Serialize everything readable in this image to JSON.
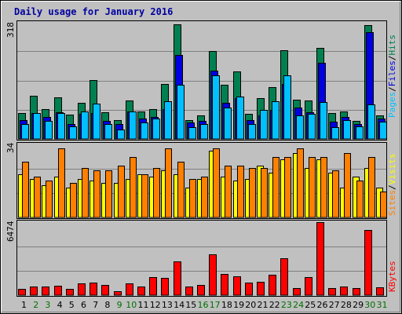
{
  "title": "Daily usage for January 2016",
  "colors": {
    "background": "#c0c0c0",
    "title": "#0000a0",
    "hits": "#008050",
    "files": "#0000e0",
    "pages": "#00c0ff",
    "visits": "#ffff00",
    "sites": "#ff8000",
    "kbytes": "#ff0000",
    "weekend_day_label": "#007000",
    "weekday_day_label": "#000000"
  },
  "chart_data": [
    {
      "type": "bar",
      "panel": "hits-files-pages",
      "ymax_label": "318",
      "ylim": [
        0,
        318
      ],
      "legend": [
        {
          "key": "pages",
          "label": "Pages"
        },
        {
          "key": "files",
          "label": "Files"
        },
        {
          "key": "hits",
          "label": "Hits"
        }
      ],
      "legend_separator": " / ",
      "categories": [
        "1",
        "2",
        "3",
        "4",
        "5",
        "6",
        "7",
        "8",
        "9",
        "10",
        "11",
        "12",
        "13",
        "14",
        "15",
        "16",
        "17",
        "18",
        "19",
        "20",
        "21",
        "22",
        "23",
        "24",
        "25",
        "26",
        "27",
        "28",
        "29",
        "30",
        "31"
      ],
      "series": [
        {
          "key": "hits",
          "values": [
            70,
            118,
            82,
            114,
            66,
            98,
            160,
            72,
            52,
            105,
            74,
            82,
            150,
            312,
            52,
            64,
            238,
            148,
            184,
            68,
            110,
            140,
            242,
            106,
            104,
            248,
            70,
            74,
            50,
            310,
            63
          ]
        },
        {
          "key": "files",
          "values": [
            52,
            70,
            59,
            72,
            40,
            68,
            70,
            50,
            40,
            74,
            55,
            60,
            82,
            228,
            44,
            50,
            186,
            98,
            110,
            52,
            65,
            80,
            150,
            85,
            72,
            208,
            46,
            60,
            40,
            290,
            55
          ]
        },
        {
          "key": "pages",
          "values": [
            40,
            70,
            50,
            70,
            35,
            75,
            95,
            40,
            25,
            75,
            45,
            55,
            103,
            148,
            33,
            40,
            172,
            85,
            116,
            40,
            80,
            103,
            172,
            65,
            68,
            100,
            33,
            52,
            34,
            94,
            48
          ]
        }
      ]
    },
    {
      "type": "bar",
      "panel": "sites-visits",
      "ymax_label": "34",
      "ylim": [
        0,
        34
      ],
      "legend": [
        {
          "key": "sites",
          "label": "Sites"
        },
        {
          "key": "visits",
          "label": "Visits"
        }
      ],
      "legend_separator": " / ",
      "categories": [
        "1",
        "2",
        "3",
        "4",
        "5",
        "6",
        "7",
        "8",
        "9",
        "10",
        "11",
        "12",
        "13",
        "14",
        "15",
        "16",
        "17",
        "18",
        "19",
        "20",
        "21",
        "22",
        "23",
        "24",
        "25",
        "26",
        "27",
        "28",
        "29",
        "30",
        "31"
      ],
      "series": [
        {
          "key": "visits",
          "values": [
            20,
            18,
            15,
            19,
            14,
            18,
            17,
            16,
            16,
            18,
            20,
            19,
            22,
            20,
            14,
            18,
            31,
            19,
            17,
            18,
            24,
            21,
            27,
            30,
            23,
            27,
            21,
            14,
            19,
            23,
            14
          ]
        },
        {
          "key": "sites",
          "values": [
            26,
            19,
            17,
            32,
            16,
            23,
            22,
            22,
            24,
            28,
            20,
            23,
            32,
            26,
            18,
            19,
            32,
            24,
            24,
            23,
            23,
            28,
            28,
            32,
            28,
            28,
            22,
            30,
            17,
            28,
            12
          ]
        }
      ]
    },
    {
      "type": "bar",
      "panel": "kbytes",
      "ymax_label": "6474",
      "ylim": [
        0,
        6474
      ],
      "legend": [
        {
          "key": "kbytes",
          "label": "KBytes"
        }
      ],
      "legend_separator": "",
      "categories": [
        "1",
        "2",
        "3",
        "4",
        "5",
        "6",
        "7",
        "8",
        "9",
        "10",
        "11",
        "12",
        "13",
        "14",
        "15",
        "16",
        "17",
        "18",
        "19",
        "20",
        "21",
        "22",
        "23",
        "24",
        "25",
        "26",
        "27",
        "28",
        "29",
        "30",
        "31"
      ],
      "series": [
        {
          "key": "kbytes",
          "values": [
            560,
            760,
            800,
            840,
            580,
            1040,
            1100,
            900,
            380,
            1040,
            740,
            1620,
            1540,
            3000,
            760,
            880,
            3600,
            1880,
            1700,
            1140,
            1200,
            1820,
            3300,
            660,
            1620,
            6474,
            640,
            740,
            620,
            5800,
            720
          ]
        }
      ]
    }
  ],
  "day_labels": [
    {
      "text": "1",
      "weekend": false
    },
    {
      "text": "2",
      "weekend": true
    },
    {
      "text": "3",
      "weekend": true
    },
    {
      "text": "4",
      "weekend": false
    },
    {
      "text": "5",
      "weekend": false
    },
    {
      "text": "6",
      "weekend": false
    },
    {
      "text": "7",
      "weekend": false
    },
    {
      "text": "8",
      "weekend": false
    },
    {
      "text": "9",
      "weekend": true
    },
    {
      "text": "10",
      "weekend": true
    },
    {
      "text": "11",
      "weekend": false
    },
    {
      "text": "12",
      "weekend": false
    },
    {
      "text": "13",
      "weekend": false
    },
    {
      "text": "14",
      "weekend": false
    },
    {
      "text": "15",
      "weekend": false
    },
    {
      "text": "16",
      "weekend": true
    },
    {
      "text": "17",
      "weekend": true
    },
    {
      "text": "18",
      "weekend": false
    },
    {
      "text": "19",
      "weekend": false
    },
    {
      "text": "20",
      "weekend": false
    },
    {
      "text": "21",
      "weekend": false
    },
    {
      "text": "22",
      "weekend": false
    },
    {
      "text": "23",
      "weekend": true
    },
    {
      "text": "24",
      "weekend": true
    },
    {
      "text": "25",
      "weekend": false
    },
    {
      "text": "26",
      "weekend": false
    },
    {
      "text": "27",
      "weekend": false
    },
    {
      "text": "28",
      "weekend": false
    },
    {
      "text": "29",
      "weekend": false
    },
    {
      "text": "30",
      "weekend": true
    },
    {
      "text": "31",
      "weekend": true
    }
  ]
}
